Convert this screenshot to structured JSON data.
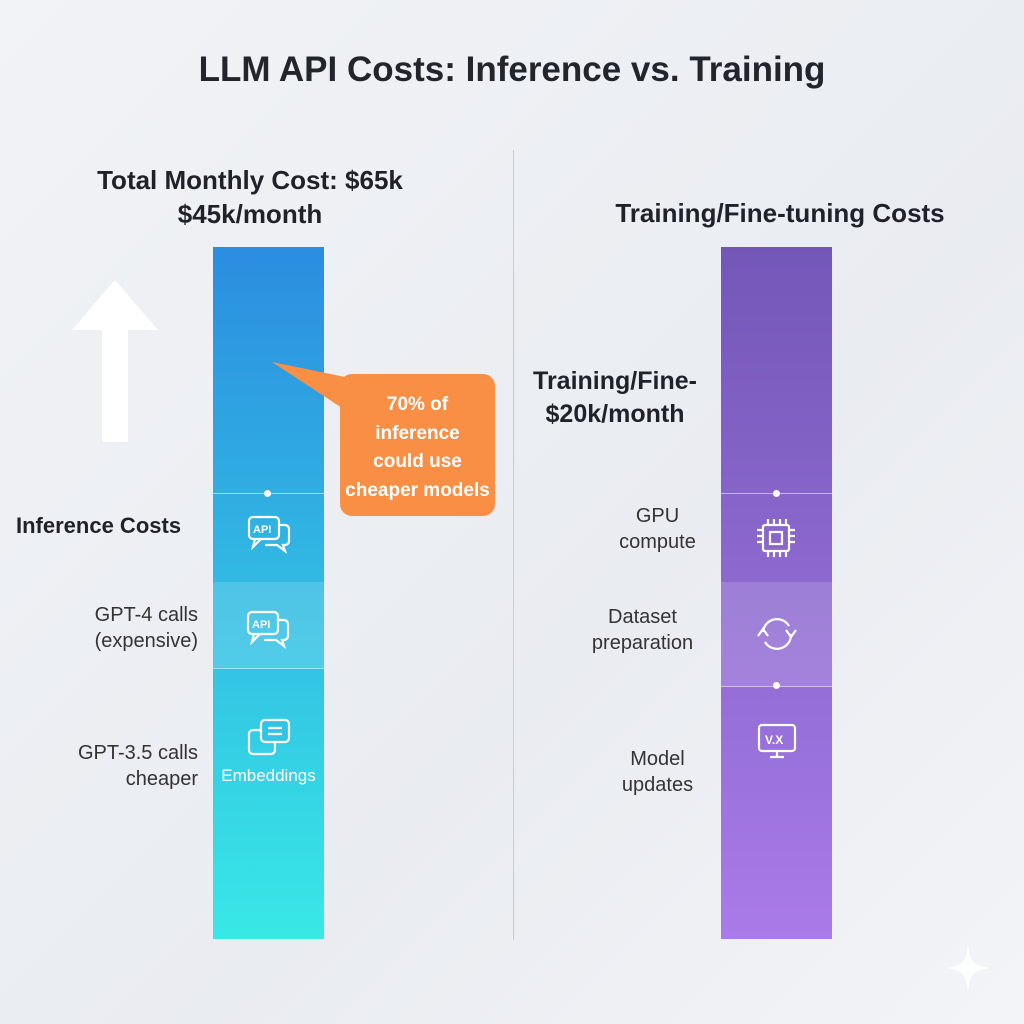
{
  "title": "LLM API Costs: Inference vs. Training",
  "left": {
    "total": "Total Monthly Cost: $65k",
    "monthly": "$45k/month",
    "section_label": "Inference Costs",
    "items": [
      {
        "label_line1": "GPT-4 calls",
        "label_line2": "(expensive)",
        "icon": "api-chat-icon"
      },
      {
        "label_line1": "GPT-3.5 calls",
        "label_line2": "cheaper",
        "icon": "embeddings-chat-icon",
        "icon_caption": "Embeddings"
      }
    ],
    "bar_colors": [
      "#2b8de0",
      "#38e8e6"
    ],
    "callout": {
      "line1": "70% of",
      "line2": "inference",
      "line3": "could use",
      "line4": "cheaper models",
      "color": "#f98f45"
    }
  },
  "right": {
    "heading": "Training/Fine-tuning Costs",
    "label_line1": "Training/Fine-",
    "label_line2": "$20k/month",
    "items": [
      {
        "label_line1": "GPU",
        "label_line2": "compute",
        "icon": "cpu-chip-icon"
      },
      {
        "label_line1": "Dataset",
        "label_line2": "preparation",
        "icon": "refresh-cycle-icon"
      },
      {
        "label_line1": "Model",
        "label_line2": "updates",
        "icon": "monitor-version-icon",
        "icon_text": "V.X"
      }
    ],
    "bar_colors": [
      "#7357b7",
      "#a87be9"
    ]
  }
}
